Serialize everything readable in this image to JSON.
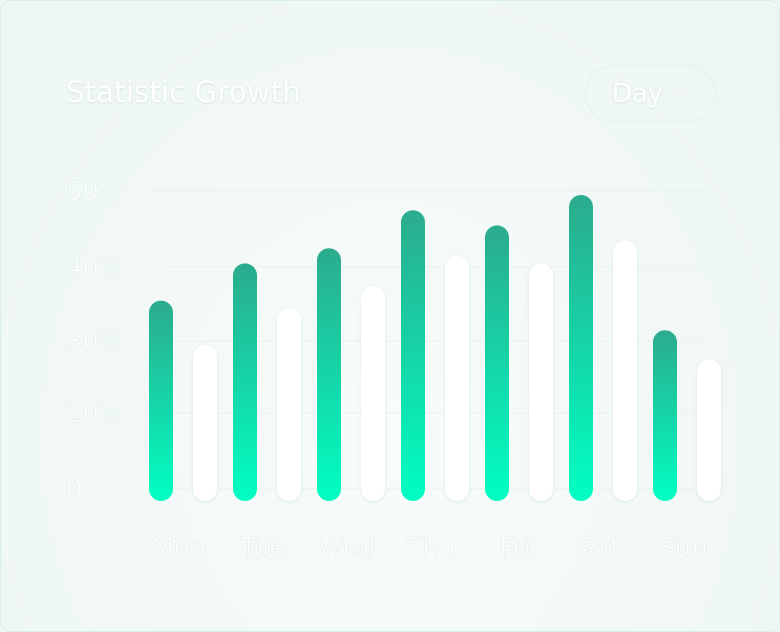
{
  "header": {
    "title": "Statistic Growth",
    "period_select": "Day"
  },
  "colors": {
    "bar_primary_top": "#2bab8d",
    "bar_primary_bottom": "#00ffc2",
    "bar_secondary": "#ffffff",
    "text": "#ffffff",
    "grid": "#e6f3ef"
  },
  "icons": {
    "dropdown": "chevron-down-icon"
  },
  "chart_data": {
    "type": "bar",
    "title": "Statistic Growth",
    "categories": [
      "Mon",
      "Tue",
      "Wed",
      "Thu",
      "Fri",
      "Sat",
      "Sun"
    ],
    "series": [
      {
        "values": [
          36,
          41,
          43,
          48,
          46,
          50,
          32
        ]
      },
      {
        "values": [
          30,
          35,
          38,
          42,
          41,
          44,
          28
        ]
      }
    ],
    "yticks": [
      "0",
      "20%",
      "30%",
      "40%",
      "50%"
    ],
    "ylim": [
      0,
      50
    ],
    "grid": true,
    "legend": "none"
  }
}
